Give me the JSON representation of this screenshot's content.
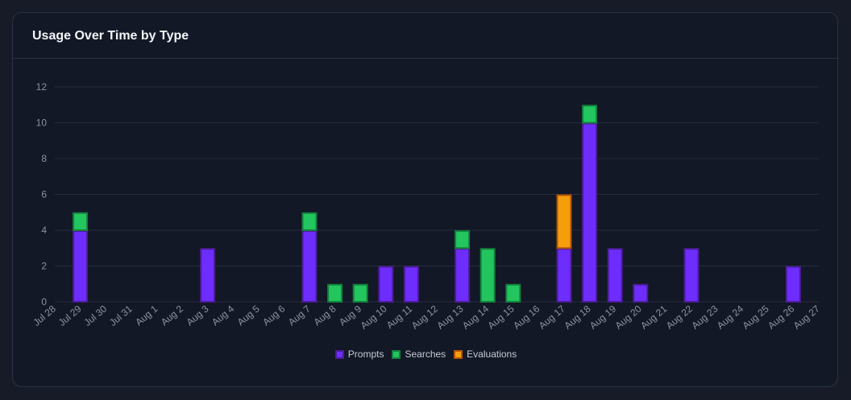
{
  "card": {
    "title": "Usage Over Time by Type"
  },
  "colors": {
    "Prompts": {
      "fill": "#6d2dfc",
      "stroke": "#4c1d95"
    },
    "Searches": {
      "fill": "#22c55e",
      "stroke": "#15803d"
    },
    "Evaluations": {
      "fill": "#f59e0b",
      "stroke": "#b45309"
    }
  },
  "chart_data": {
    "type": "bar",
    "stacked": true,
    "categories": [
      "Jul 28",
      "Jul 29",
      "Jul 30",
      "Jul 31",
      "Aug 1",
      "Aug 2",
      "Aug 3",
      "Aug 4",
      "Aug 5",
      "Aug 6",
      "Aug 7",
      "Aug 8",
      "Aug 9",
      "Aug 10",
      "Aug 11",
      "Aug 12",
      "Aug 13",
      "Aug 14",
      "Aug 15",
      "Aug 16",
      "Aug 17",
      "Aug 18",
      "Aug 19",
      "Aug 20",
      "Aug 21",
      "Aug 22",
      "Aug 23",
      "Aug 24",
      "Aug 25",
      "Aug 26",
      "Aug 27"
    ],
    "series": [
      {
        "name": "Prompts",
        "values": [
          0,
          4,
          0,
          0,
          0,
          0,
          3,
          0,
          0,
          0,
          4,
          0,
          0,
          2,
          2,
          0,
          3,
          0,
          0,
          0,
          3,
          10,
          3,
          1,
          0,
          3,
          0,
          0,
          0,
          2,
          0
        ]
      },
      {
        "name": "Searches",
        "values": [
          0,
          1,
          0,
          0,
          0,
          0,
          0,
          0,
          0,
          0,
          1,
          1,
          1,
          0,
          0,
          0,
          1,
          3,
          1,
          0,
          0,
          1,
          0,
          0,
          0,
          0,
          0,
          0,
          0,
          0,
          0
        ]
      },
      {
        "name": "Evaluations",
        "values": [
          0,
          0,
          0,
          0,
          0,
          0,
          0,
          0,
          0,
          0,
          0,
          0,
          0,
          0,
          0,
          0,
          0,
          0,
          0,
          0,
          3,
          0,
          0,
          0,
          0,
          0,
          0,
          0,
          0,
          0,
          0
        ]
      }
    ],
    "yticks": [
      0,
      2,
      4,
      6,
      8,
      10,
      12
    ],
    "ylim": [
      0,
      12
    ],
    "grid": true,
    "legend": "bottom-center"
  }
}
